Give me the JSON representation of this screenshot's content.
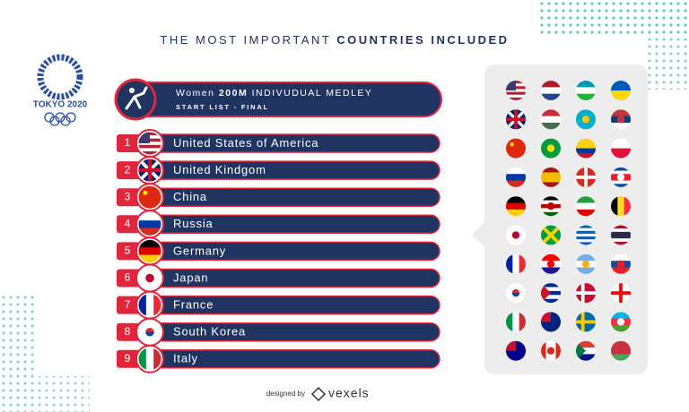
{
  "title": {
    "regular": "THE MOST IMPORTANT",
    "bold": "COUNTRIES INCLUDED"
  },
  "logo": {
    "label": "TOKYO 2020"
  },
  "event": {
    "prefix": "Women",
    "distance": "200M",
    "name": "INDIVUDUAL MEDLEY",
    "subtitle": "START LIST - FINAL"
  },
  "rows": [
    {
      "rank": 1,
      "country": "United States of America"
    },
    {
      "rank": 2,
      "country": "United Kindgom"
    },
    {
      "rank": 3,
      "country": "China"
    },
    {
      "rank": 4,
      "country": "Russia"
    },
    {
      "rank": 5,
      "country": "Germany"
    },
    {
      "rank": 6,
      "country": "Japan"
    },
    {
      "rank": 7,
      "country": "France"
    },
    {
      "rank": 8,
      "country": "South Korea"
    },
    {
      "rank": 9,
      "country": "Italy"
    }
  ],
  "footer": {
    "prefix": "designed by",
    "brand": "vexels"
  }
}
